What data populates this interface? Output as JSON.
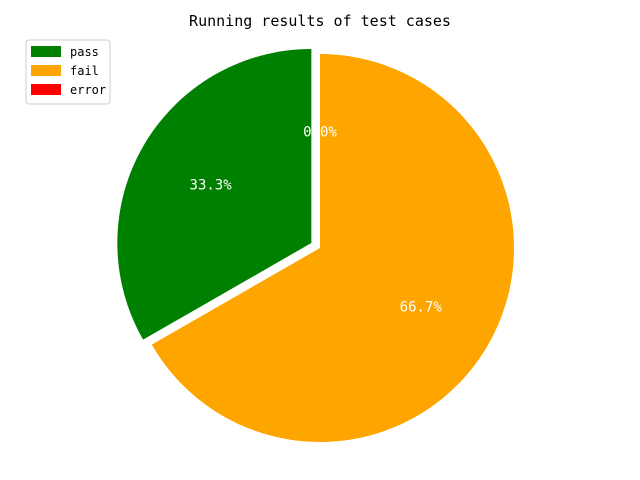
{
  "chart_data": {
    "type": "pie",
    "title": "Running results of test cases",
    "labels": [
      "pass",
      "fail",
      "error"
    ],
    "values": [
      33.3,
      66.7,
      0.0
    ],
    "percent_labels": [
      "33.3%",
      "66.7%",
      "0.0%"
    ],
    "colors": [
      "#008000",
      "#ffa500",
      "#ff0000"
    ],
    "exploded": [
      true,
      false,
      false
    ],
    "legend_placement": "top-left"
  }
}
